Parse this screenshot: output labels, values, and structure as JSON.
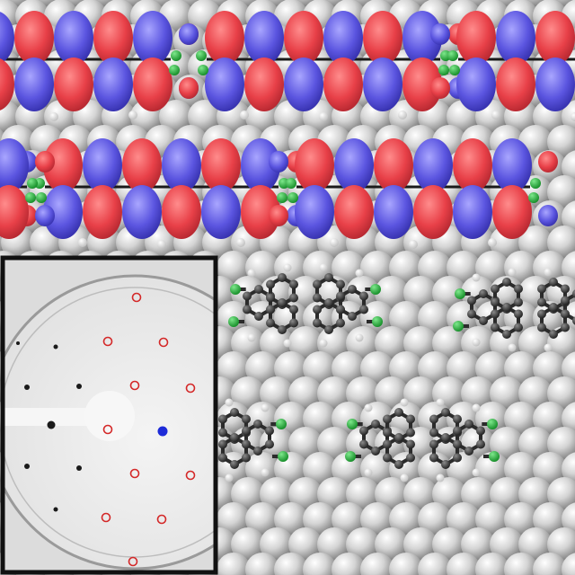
{
  "image": {
    "kind": "scientific-figure",
    "panels": [
      "orbital-density-isosurfaces",
      "leed-diffraction-pattern",
      "ball-and-stick-molecular-model"
    ]
  },
  "colors": {
    "substrate_atom": "#cfcfcf",
    "substrate_atom_highlight": "#ffffff",
    "substrate_atom_shadow": "#6f6f6f",
    "orbital_positive": "#e84048",
    "orbital_negative": "#5b55e0",
    "carbon_atom": "#3a3a3a",
    "hydrogen_atom": "#f4f4f4",
    "oxygen_nitrogen_atom": "#22b03a",
    "leed_background": "#e6e6e6",
    "leed_spot": "#1a1a1a",
    "leed_circle_marker": "#d42828",
    "leed_highlight_spot": "#1d2bd8",
    "inset_border": "#111111"
  }
}
